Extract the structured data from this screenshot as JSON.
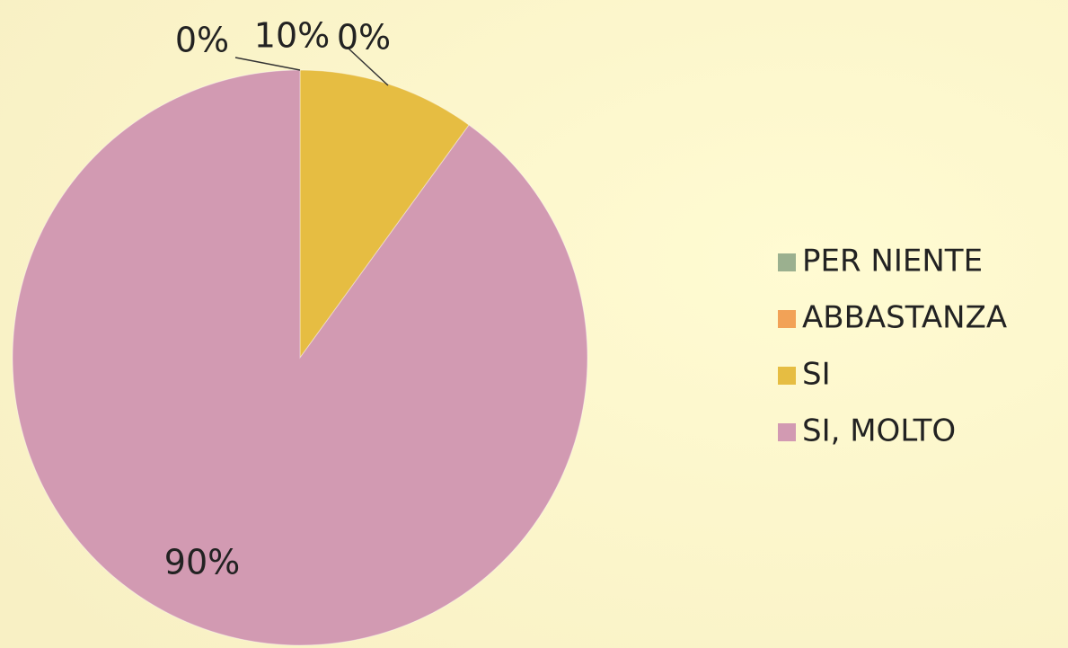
{
  "chart_data": {
    "type": "pie",
    "categories": [
      "PER NIENTE",
      "ABBASTANZA",
      "SI",
      "SI, MOLTO"
    ],
    "values": [
      0,
      0,
      10,
      90
    ],
    "value_labels": [
      "0%",
      "0%",
      "10%",
      "90%"
    ],
    "colors": [
      "#9bb08f",
      "#f2a257",
      "#e6bd42",
      "#d29ab2"
    ]
  }
}
